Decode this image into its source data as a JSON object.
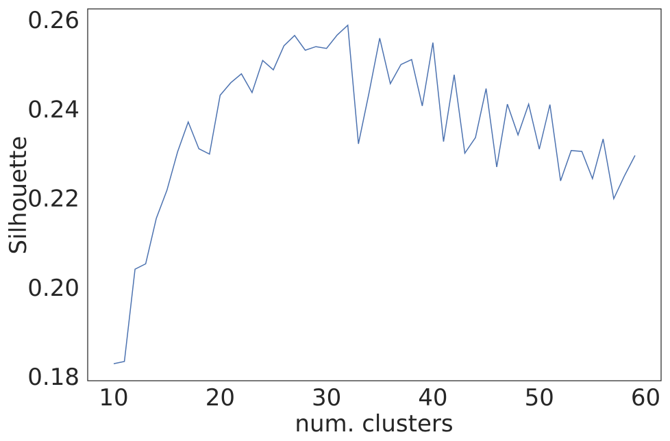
{
  "chart_data": {
    "type": "line",
    "xlabel": "num. clusters",
    "ylabel": "Silhouette",
    "x": [
      10,
      11,
      12,
      13,
      14,
      15,
      16,
      17,
      18,
      19,
      20,
      21,
      22,
      23,
      24,
      25,
      26,
      27,
      28,
      29,
      30,
      31,
      32,
      33,
      34,
      35,
      36,
      37,
      38,
      39,
      40,
      41,
      42,
      43,
      44,
      45,
      46,
      47,
      48,
      49,
      50,
      51,
      52,
      53,
      54,
      55,
      56,
      57,
      58,
      59
    ],
    "series": [
      {
        "name": "Silhouette",
        "color": "#4c72b0",
        "values": [
          0.1829,
          0.1834,
          0.2041,
          0.2053,
          0.2155,
          0.2218,
          0.2304,
          0.2371,
          0.2311,
          0.2299,
          0.2431,
          0.2459,
          0.2479,
          0.2437,
          0.2509,
          0.2488,
          0.2542,
          0.2565,
          0.2532,
          0.254,
          0.2536,
          0.2566,
          0.2588,
          0.2322,
          0.2437,
          0.2559,
          0.2457,
          0.25,
          0.2511,
          0.2407,
          0.2549,
          0.2327,
          0.2477,
          0.2301,
          0.2336,
          0.2446,
          0.227,
          0.2411,
          0.2342,
          0.2411,
          0.231,
          0.241,
          0.2239,
          0.2307,
          0.2305,
          0.2244,
          0.2333,
          0.2199,
          0.225,
          0.2296
        ]
      }
    ],
    "xlim": [
      7.55,
      61.45
    ],
    "ylim": [
      0.17908,
      0.26246
    ],
    "xticks": [
      10,
      20,
      30,
      40,
      50,
      60
    ],
    "yticks": [
      0.18,
      {
        "value": 0.2,
        "label": "0.20"
      },
      0.22,
      0.24,
      0.26
    ],
    "grid": false
  }
}
